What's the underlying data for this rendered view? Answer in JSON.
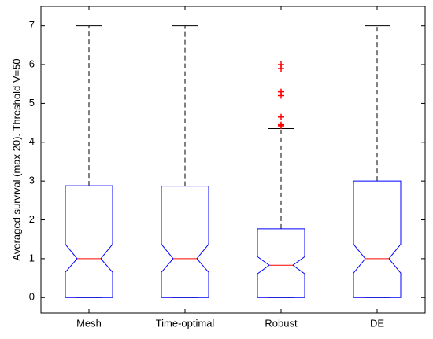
{
  "chart_data": {
    "type": "box",
    "ylabel": "Averaged survival (max 20). Threshold V=50",
    "categories": [
      "Mesh",
      "Time-optimal",
      "Robust",
      "DE"
    ],
    "boxes": [
      {
        "q1": 0,
        "median": 1,
        "q3": 2.88,
        "whisker_low": 0,
        "whisker_high": 7,
        "notch_low": 0.65,
        "notch_high": 1.37,
        "outliers": []
      },
      {
        "q1": 0,
        "median": 1,
        "q3": 2.87,
        "whisker_low": 0,
        "whisker_high": 7,
        "notch_low": 0.65,
        "notch_high": 1.37,
        "outliers": []
      },
      {
        "q1": 0,
        "median": 0.83,
        "q3": 1.77,
        "whisker_low": 0,
        "whisker_high": 4.35,
        "notch_low": 0.61,
        "notch_high": 1.05,
        "outliers": [
          4.42,
          4.45,
          4.65,
          5.2,
          5.3,
          5.9,
          6.0
        ]
      },
      {
        "q1": 0,
        "median": 1,
        "q3": 3.0,
        "whisker_low": 0,
        "whisker_high": 7,
        "notch_low": 0.63,
        "notch_high": 1.37,
        "outliers": []
      }
    ],
    "box_color": "#0000ff",
    "median_color": "#ff0000",
    "whisker_color": "#000000",
    "outlier_color": "#ff0000",
    "ylim": [
      -0.4,
      7.5
    ],
    "yticks": [
      0,
      1,
      2,
      3,
      4,
      5,
      6,
      7
    ]
  }
}
